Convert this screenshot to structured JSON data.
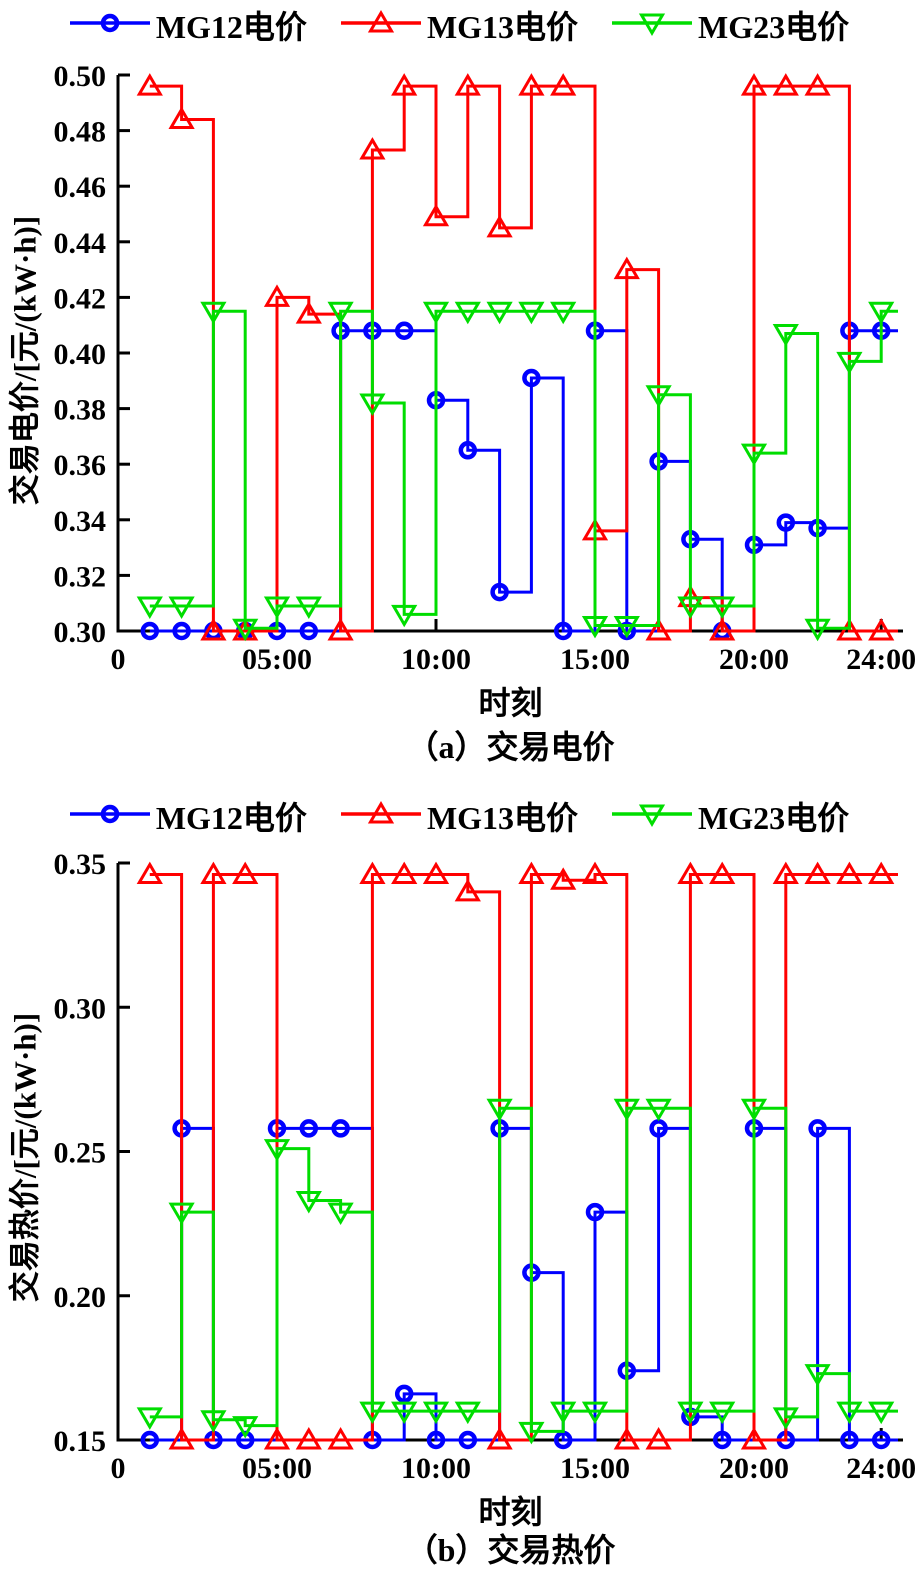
{
  "colors": {
    "mg12": "#0000ff",
    "mg13": "#ff0000",
    "mg23": "#00dd00",
    "axis": "#000000"
  },
  "chart_data": [
    {
      "type": "line",
      "style": "step-post",
      "title": "（a）交易电价",
      "xlabel": "时刻",
      "ylabel": "交易电价/[元/(kW·h)]",
      "x_hours": [
        1,
        2,
        3,
        4,
        5,
        6,
        7,
        8,
        9,
        10,
        11,
        12,
        13,
        14,
        15,
        16,
        17,
        18,
        19,
        20,
        21,
        22,
        23,
        24
      ],
      "xtick_hours": [
        0,
        5,
        10,
        15,
        20,
        24
      ],
      "xtick_labels": [
        "0",
        "05:00",
        "10:00",
        "15:00",
        "20:00",
        "24:00"
      ],
      "xlim": [
        0,
        24.7
      ],
      "ylim": [
        0.3,
        0.5
      ],
      "ytick_values": [
        0.3,
        0.32,
        0.34,
        0.36,
        0.38,
        0.4,
        0.42,
        0.44,
        0.46,
        0.48,
        0.5
      ],
      "ytick_labels": [
        "0.30",
        "0.32",
        "0.34",
        "0.36",
        "0.38",
        "0.40",
        "0.42",
        "0.44",
        "0.46",
        "0.48",
        "0.50"
      ],
      "grid": false,
      "legend_position": "top",
      "series": [
        {
          "name": "MG12电价",
          "marker": "circle",
          "color": "#0000ff",
          "values": [
            0.3,
            0.3,
            0.3,
            0.3,
            0.3,
            0.3,
            0.408,
            0.408,
            0.408,
            0.383,
            0.365,
            0.314,
            0.391,
            0.3,
            0.408,
            0.3,
            0.361,
            0.333,
            0.3,
            0.331,
            0.339,
            0.337,
            0.408,
            0.408
          ]
        },
        {
          "name": "MG13电价",
          "marker": "triangle-up",
          "color": "#ff0000",
          "values": [
            0.496,
            0.484,
            0.3,
            0.3,
            0.42,
            0.414,
            0.3,
            0.473,
            0.496,
            0.449,
            0.496,
            0.445,
            0.496,
            0.496,
            0.336,
            0.43,
            0.3,
            0.312,
            0.3,
            0.496,
            0.496,
            0.496,
            0.3,
            0.3
          ]
        },
        {
          "name": "MG23电价",
          "marker": "triangle-down",
          "color": "#00dd00",
          "values": [
            0.309,
            0.309,
            0.415,
            0.301,
            0.309,
            0.309,
            0.415,
            0.382,
            0.306,
            0.415,
            0.415,
            0.415,
            0.415,
            0.415,
            0.302,
            0.302,
            0.385,
            0.309,
            0.309,
            0.364,
            0.407,
            0.301,
            0.397,
            0.415
          ]
        }
      ]
    },
    {
      "type": "line",
      "style": "step-post",
      "title": "（b）交易热价",
      "xlabel": "时刻",
      "ylabel": "交易热价/[元/(kW·h)]",
      "x_hours": [
        1,
        2,
        3,
        4,
        5,
        6,
        7,
        8,
        9,
        10,
        11,
        12,
        13,
        14,
        15,
        16,
        17,
        18,
        19,
        20,
        21,
        22,
        23,
        24
      ],
      "xtick_hours": [
        0,
        5,
        10,
        15,
        20,
        24
      ],
      "xtick_labels": [
        "0",
        "05:00",
        "10:00",
        "15:00",
        "20:00",
        "24:00"
      ],
      "xlim": [
        0,
        24.7
      ],
      "ylim": [
        0.15,
        0.35
      ],
      "ytick_values": [
        0.15,
        0.2,
        0.25,
        0.3,
        0.35
      ],
      "ytick_labels": [
        "0.15",
        "0.20",
        "0.25",
        "0.30",
        "0.35"
      ],
      "grid": false,
      "legend_position": "top",
      "series": [
        {
          "name": "MG12电价",
          "marker": "circle",
          "color": "#0000ff",
          "values": [
            0.15,
            0.258,
            0.15,
            0.15,
            0.258,
            0.258,
            0.258,
            0.15,
            0.166,
            0.15,
            0.15,
            0.258,
            0.208,
            0.15,
            0.229,
            0.174,
            0.258,
            0.158,
            0.15,
            0.258,
            0.15,
            0.258,
            0.15,
            0.15
          ]
        },
        {
          "name": "MG13电价",
          "marker": "triangle-up",
          "color": "#ff0000",
          "values": [
            0.346,
            0.15,
            0.346,
            0.346,
            0.15,
            0.15,
            0.15,
            0.346,
            0.346,
            0.346,
            0.34,
            0.15,
            0.346,
            0.344,
            0.346,
            0.15,
            0.15,
            0.346,
            0.346,
            0.15,
            0.346,
            0.346,
            0.346,
            0.346
          ]
        },
        {
          "name": "MG23电价",
          "marker": "triangle-down",
          "color": "#00dd00",
          "values": [
            0.158,
            0.229,
            0.157,
            0.155,
            0.251,
            0.233,
            0.229,
            0.16,
            0.16,
            0.16,
            0.16,
            0.265,
            0.153,
            0.16,
            0.16,
            0.265,
            0.265,
            0.16,
            0.16,
            0.265,
            0.158,
            0.173,
            0.16,
            0.16
          ]
        }
      ]
    }
  ]
}
